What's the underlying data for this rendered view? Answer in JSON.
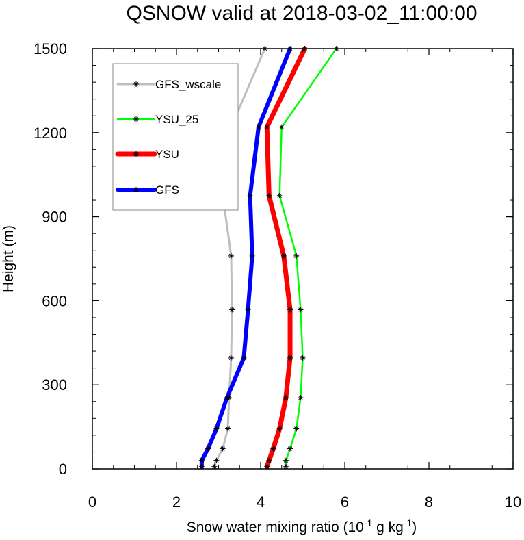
{
  "chart_data": {
    "type": "line",
    "title": "QSNOW valid at 2018-03-02_11:00:00",
    "xlabel": {
      "prefix": "Snow water mixing ratio (10",
      "exp1": "-1",
      "middle": " g kg",
      "exp2": "-1",
      "suffix": ")"
    },
    "ylabel": "Height (m)",
    "xlim": [
      0,
      10
    ],
    "ylim": [
      0,
      1500
    ],
    "xticks": [
      0,
      2,
      4,
      6,
      8,
      10
    ],
    "yticks": [
      0,
      300,
      600,
      900,
      1200,
      1500
    ],
    "xtick_labels": [
      "0",
      "2",
      "4",
      "6",
      "8",
      "10"
    ],
    "ytick_labels": [
      "0",
      "300",
      "600",
      "900",
      "1200",
      "1500"
    ],
    "grid": false,
    "legend_position": "top-left",
    "series": [
      {
        "name": "GFS_wscale",
        "color": "#bebebe",
        "width": 3,
        "points": [
          [
            2.9,
            8
          ],
          [
            2.95,
            30
          ],
          [
            3.1,
            72
          ],
          [
            3.22,
            143
          ],
          [
            3.25,
            254
          ],
          [
            3.3,
            396
          ],
          [
            3.32,
            568
          ],
          [
            3.3,
            760
          ],
          [
            3.1,
            975
          ],
          [
            3.3,
            1220
          ],
          [
            4.1,
            1500
          ]
        ]
      },
      {
        "name": "YSU_25",
        "color": "#00ff00",
        "width": 2.5,
        "points": [
          [
            4.6,
            8
          ],
          [
            4.6,
            30
          ],
          [
            4.7,
            72
          ],
          [
            4.85,
            143
          ],
          [
            4.95,
            254
          ],
          [
            5.0,
            396
          ],
          [
            4.95,
            568
          ],
          [
            4.85,
            760
          ],
          [
            4.45,
            975
          ],
          [
            4.5,
            1220
          ],
          [
            5.8,
            1500
          ]
        ]
      },
      {
        "name": "YSU",
        "color": "#ff0000",
        "width": 7,
        "points": [
          [
            4.15,
            8
          ],
          [
            4.2,
            30
          ],
          [
            4.3,
            72
          ],
          [
            4.45,
            143
          ],
          [
            4.6,
            254
          ],
          [
            4.7,
            396
          ],
          [
            4.7,
            568
          ],
          [
            4.55,
            760
          ],
          [
            4.2,
            975
          ],
          [
            4.15,
            1220
          ],
          [
            5.05,
            1500
          ]
        ]
      },
      {
        "name": "GFS",
        "color": "#0000ff",
        "width": 6,
        "points": [
          [
            2.6,
            8
          ],
          [
            2.6,
            30
          ],
          [
            2.75,
            72
          ],
          [
            2.95,
            143
          ],
          [
            3.2,
            254
          ],
          [
            3.6,
            396
          ],
          [
            3.7,
            568
          ],
          [
            3.8,
            760
          ],
          [
            3.75,
            975
          ],
          [
            3.95,
            1220
          ],
          [
            4.7,
            1500
          ]
        ]
      }
    ]
  }
}
